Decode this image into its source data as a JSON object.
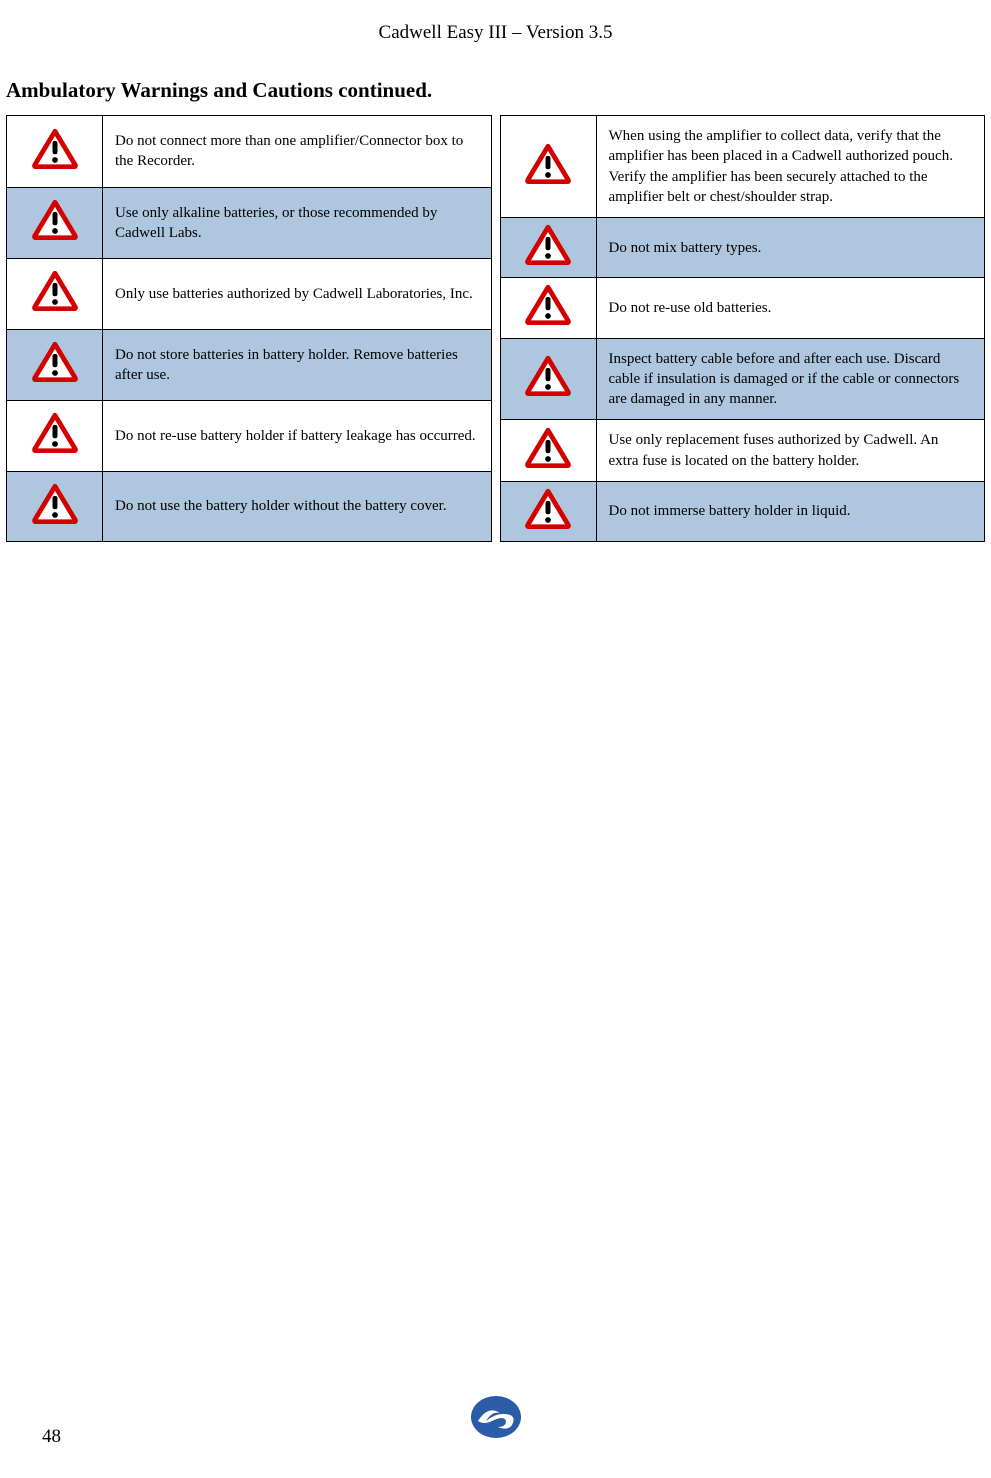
{
  "header": {
    "title": "Cadwell Easy III – Version 3.5"
  },
  "section": {
    "title": "Ambulatory Warnings and Cautions continued."
  },
  "icon": {
    "triangle_stroke": "#d40000",
    "triangle_fill": "#ffffff",
    "exclaim_fill": "#000000",
    "size": 46
  },
  "colors": {
    "row_shade": "#aec6de",
    "border": "#000000",
    "background": "#ffffff",
    "text": "#000000",
    "logo_blue": "#2a5ca8",
    "logo_swirl": "#ffffff"
  },
  "typography": {
    "header_fontsize": 19,
    "section_title_fontsize": 21,
    "cell_fontsize": 15,
    "page_number_fontsize": 19,
    "font_family": "Palatino Linotype"
  },
  "left_table": {
    "rows": [
      {
        "shaded": false,
        "text": "Do not connect more than one amplifier/Connector box to the Recorder."
      },
      {
        "shaded": true,
        "text": "Use only alkaline batteries, or those recommended by Cadwell Labs."
      },
      {
        "shaded": false,
        "text": "Only use batteries authorized by Cadwell Laboratories, Inc."
      },
      {
        "shaded": true,
        "text": "Do not store batteries in battery holder.  Remove batteries after use."
      },
      {
        "shaded": false,
        "text": "Do not re-use battery holder if battery leakage has occurred."
      },
      {
        "shaded": true,
        "text": "Do not use the battery holder without the battery cover."
      }
    ]
  },
  "right_table": {
    "rows": [
      {
        "shaded": false,
        "text": "When using the amplifier to collect data, verify that the amplifier has been placed in a Cadwell authorized pouch.  Verify the amplifier has been securely attached to the amplifier belt or chest/shoulder strap."
      },
      {
        "shaded": true,
        "text": "Do not mix battery types."
      },
      {
        "shaded": false,
        "text": "Do not re-use old batteries."
      },
      {
        "shaded": true,
        "text": "Inspect battery cable before and after each use.  Discard cable if insulation is damaged or if the cable or connectors are damaged in any manner."
      },
      {
        "shaded": false,
        "text": "Use only replacement fuses authorized by Cadwell.  An extra fuse is located on the battery holder."
      },
      {
        "shaded": true,
        "text": "Do not immerse battery holder in liquid."
      }
    ]
  },
  "footer": {
    "page_number": "48"
  }
}
